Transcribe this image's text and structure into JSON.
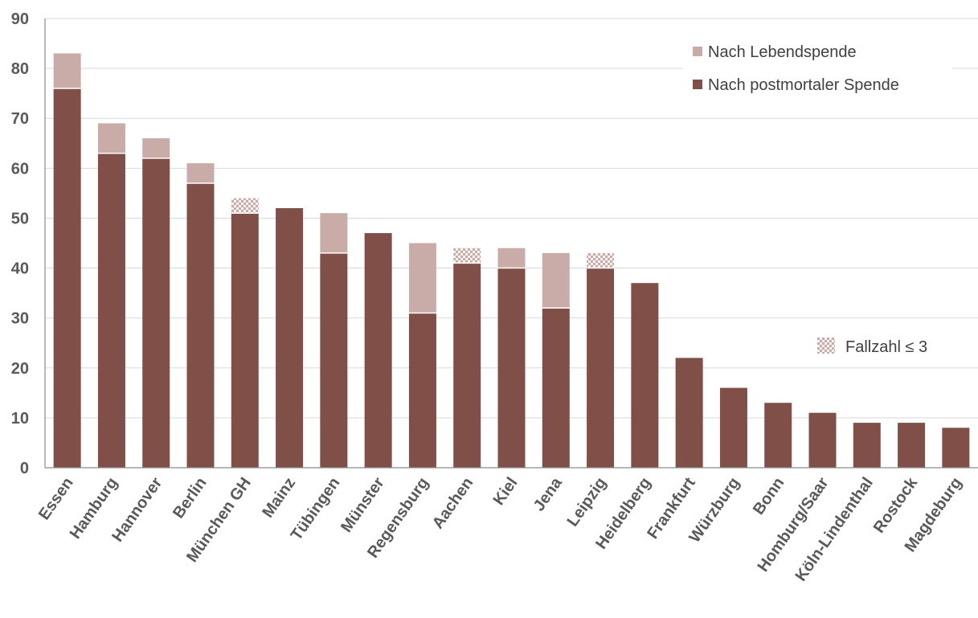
{
  "chart_data": {
    "type": "bar",
    "stacked": true,
    "categories": [
      "Essen",
      "Hamburg",
      "Hannover",
      "Berlin",
      "München GH",
      "Mainz",
      "Tübingen",
      "Münster",
      "Regensburg",
      "Aachen",
      "Kiel",
      "Jena",
      "Leipzig",
      "Heidelberg",
      "Frankfurt",
      "Würzburg",
      "Bonn",
      "Homburg/Saar",
      "Köln-Lindenthal",
      "Rostock",
      "Magdeburg"
    ],
    "series": [
      {
        "name": "Nach postmortaler Spende",
        "color": "#7f4f48",
        "values": [
          76,
          63,
          62,
          57,
          51,
          52,
          43,
          47,
          31,
          41,
          40,
          32,
          40,
          37,
          22,
          16,
          13,
          11,
          9,
          9,
          8
        ]
      },
      {
        "name": "Nach Lebendspende",
        "color": "#c9aca8",
        "values": [
          7,
          6,
          4,
          4,
          3,
          0,
          8,
          0,
          14,
          3,
          4,
          11,
          3,
          0,
          0,
          0,
          0,
          0,
          0,
          0,
          0
        ]
      }
    ],
    "small_count_flags": [
      false,
      false,
      false,
      false,
      true,
      false,
      false,
      false,
      false,
      true,
      false,
      false,
      true,
      false,
      false,
      false,
      false,
      false,
      false,
      false,
      false
    ],
    "small_count_label": "Fallzahl ≤ 3",
    "ylim": [
      0,
      90
    ],
    "yticks": [
      0,
      10,
      20,
      30,
      40,
      50,
      60,
      70,
      80,
      90
    ],
    "grid": true,
    "legend_placement": "top-right",
    "xlabel": "",
    "ylabel": "",
    "title": ""
  }
}
